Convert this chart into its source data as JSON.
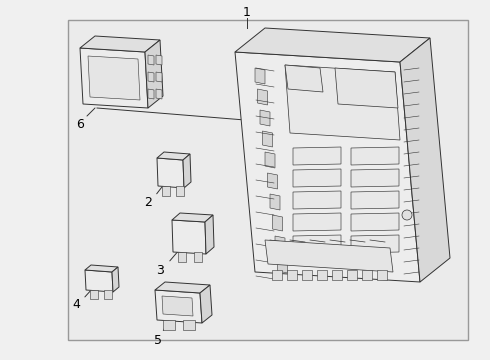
{
  "background_color": "#f0f0f0",
  "border_color": "#888888",
  "line_color": "#333333",
  "text_color": "#000000",
  "face_color": "#f0f0f0",
  "fig_width": 4.9,
  "fig_height": 3.6,
  "dpi": 100,
  "labels": [
    "1",
    "2",
    "3",
    "4",
    "5",
    "6"
  ]
}
